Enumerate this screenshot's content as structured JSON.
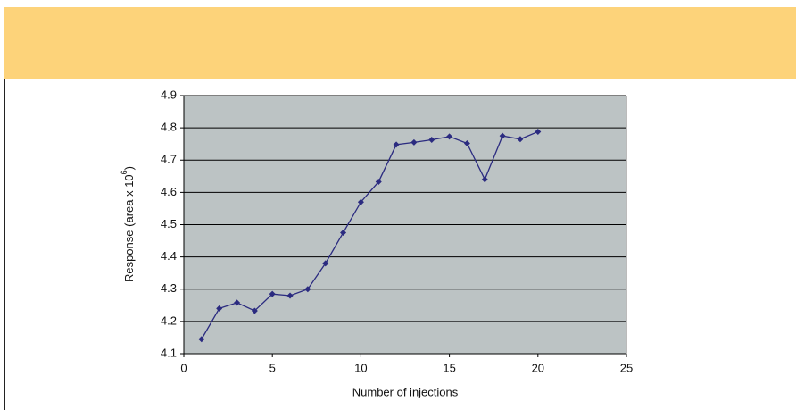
{
  "chart_data": {
    "type": "line",
    "x_label": "Number of injections",
    "y_label": {
      "text": "Response (area x 10",
      "superscript": "6",
      "suffix": ")"
    },
    "x": [
      1,
      2,
      3,
      4,
      5,
      6,
      7,
      8,
      9,
      10,
      11,
      12,
      13,
      14,
      15,
      16,
      17,
      18,
      19,
      20
    ],
    "series": [
      {
        "color": "#2b2b80",
        "values": [
          4.145,
          4.24,
          4.258,
          4.233,
          4.285,
          4.28,
          4.3,
          4.38,
          4.475,
          4.57,
          4.633,
          4.748,
          4.755,
          4.763,
          4.773,
          4.752,
          4.64,
          4.775,
          4.765,
          4.788
        ]
      }
    ],
    "xlim": [
      0,
      25
    ],
    "xticks": [
      0,
      5,
      10,
      15,
      20,
      25
    ],
    "ylim": [
      4.1,
      4.9
    ],
    "yticks": [
      4.1,
      4.2,
      4.3,
      4.4,
      4.5,
      4.6,
      4.7,
      4.8,
      4.9
    ],
    "grid": true
  }
}
